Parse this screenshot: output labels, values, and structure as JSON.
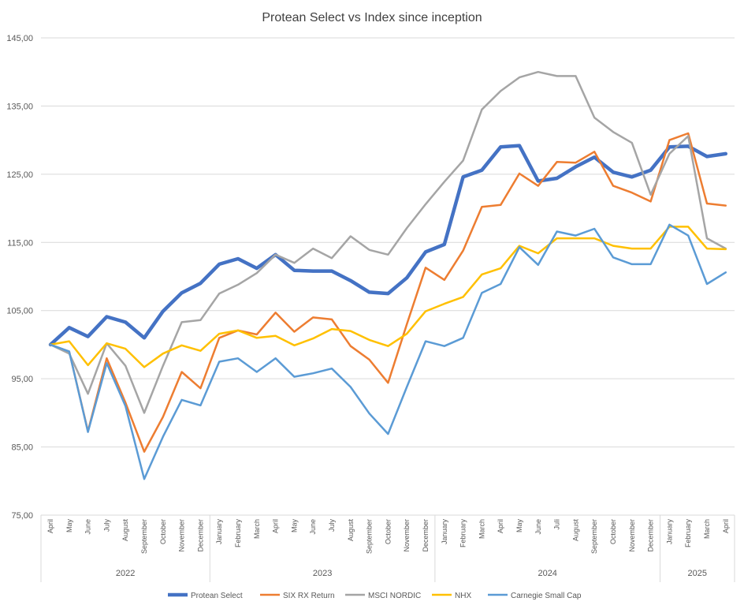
{
  "chart_data": {
    "type": "line",
    "title": "Protean Select vs Index since inception",
    "xlabel": "",
    "ylabel": "",
    "ylim": [
      75,
      145
    ],
    "yticks": [
      "75,00",
      "85,00",
      "95,00",
      "105,00",
      "115,00",
      "125,00",
      "135,00",
      "145,00"
    ],
    "ytick_values": [
      75,
      85,
      95,
      105,
      115,
      125,
      135,
      145
    ],
    "grid": true,
    "legend_position": "bottom",
    "categories": [
      "April",
      "May",
      "June",
      "July",
      "August",
      "September",
      "October",
      "November",
      "December",
      "January",
      "February",
      "March",
      "April",
      "May",
      "June",
      "July",
      "August",
      "September",
      "October",
      "November",
      "December",
      "January",
      "February",
      "March",
      "April",
      "May",
      "June",
      "Juli",
      "August",
      "September",
      "October",
      "November",
      "December",
      "January",
      "February",
      "March",
      "April"
    ],
    "year_groups": [
      {
        "label": "2022",
        "count": 9
      },
      {
        "label": "2023",
        "count": 12
      },
      {
        "label": "2024",
        "count": 12
      },
      {
        "label": "2025",
        "count": 4
      }
    ],
    "series": [
      {
        "name": "Protean Select",
        "color": "#4472C4",
        "width": 4.5,
        "values": [
          100.0,
          102.5,
          101.2,
          104.1,
          103.3,
          101.0,
          104.9,
          107.6,
          109.0,
          111.8,
          112.6,
          111.2,
          113.2,
          110.9,
          110.8,
          110.8,
          109.4,
          107.7,
          107.5,
          109.8,
          113.6,
          114.7,
          124.6,
          125.6,
          129.0,
          129.2,
          124.0,
          124.4,
          126.1,
          127.5,
          125.3,
          124.6,
          125.6,
          129.0,
          129.1,
          127.6,
          128.0
        ]
      },
      {
        "name": "SIX RX Return",
        "color": "#ED7D31",
        "width": 2.5,
        "values": [
          100.0,
          99.0,
          87.3,
          98.0,
          91.5,
          84.3,
          89.4,
          96.0,
          93.6,
          101.0,
          102.1,
          101.5,
          104.7,
          101.9,
          104.0,
          103.7,
          99.8,
          97.8,
          94.4,
          103.0,
          111.3,
          109.5,
          113.8,
          120.2,
          120.5,
          125.1,
          123.3,
          126.8,
          126.7,
          128.3,
          123.3,
          122.3,
          121.0,
          130.0,
          131.0,
          120.7,
          120.4
        ]
      },
      {
        "name": "MSCI NORDIC",
        "color": "#A5A5A5",
        "width": 2.5,
        "values": [
          100.0,
          98.7,
          92.8,
          100.2,
          96.9,
          90.0,
          96.9,
          103.3,
          103.6,
          107.5,
          108.8,
          110.5,
          113.2,
          112.0,
          114.1,
          112.7,
          115.9,
          113.9,
          113.2,
          117.1,
          120.6,
          123.9,
          127.0,
          134.5,
          137.2,
          139.2,
          140.0,
          139.4,
          139.4,
          133.3,
          131.2,
          129.6,
          122.0,
          128.0,
          130.6,
          115.6,
          114.1
        ]
      },
      {
        "name": "NHX",
        "color": "#FFC000",
        "width": 2.5,
        "values": [
          100.0,
          100.5,
          97.0,
          100.2,
          99.4,
          96.7,
          98.7,
          99.9,
          99.1,
          101.6,
          102.1,
          101.0,
          101.3,
          99.9,
          100.9,
          102.3,
          102.0,
          100.7,
          99.8,
          101.6,
          104.9,
          106.0,
          107.0,
          110.3,
          111.2,
          114.5,
          113.4,
          115.6,
          115.6,
          115.6,
          114.5,
          114.1,
          114.1,
          117.3,
          117.3,
          114.1,
          114.0
        ]
      },
      {
        "name": "Carnegie Small Cap",
        "color": "#5B9BD5",
        "width": 2.5,
        "values": [
          100.0,
          99.0,
          87.2,
          97.3,
          91.0,
          80.3,
          86.5,
          91.9,
          91.1,
          97.5,
          98.0,
          96.0,
          98.0,
          95.3,
          95.8,
          96.5,
          93.8,
          89.9,
          86.9,
          93.8,
          100.5,
          99.8,
          101.0,
          107.6,
          108.9,
          114.3,
          111.7,
          116.6,
          116.0,
          117.0,
          112.8,
          111.8,
          111.8,
          117.6,
          116.0,
          108.9,
          110.6
        ]
      }
    ]
  }
}
